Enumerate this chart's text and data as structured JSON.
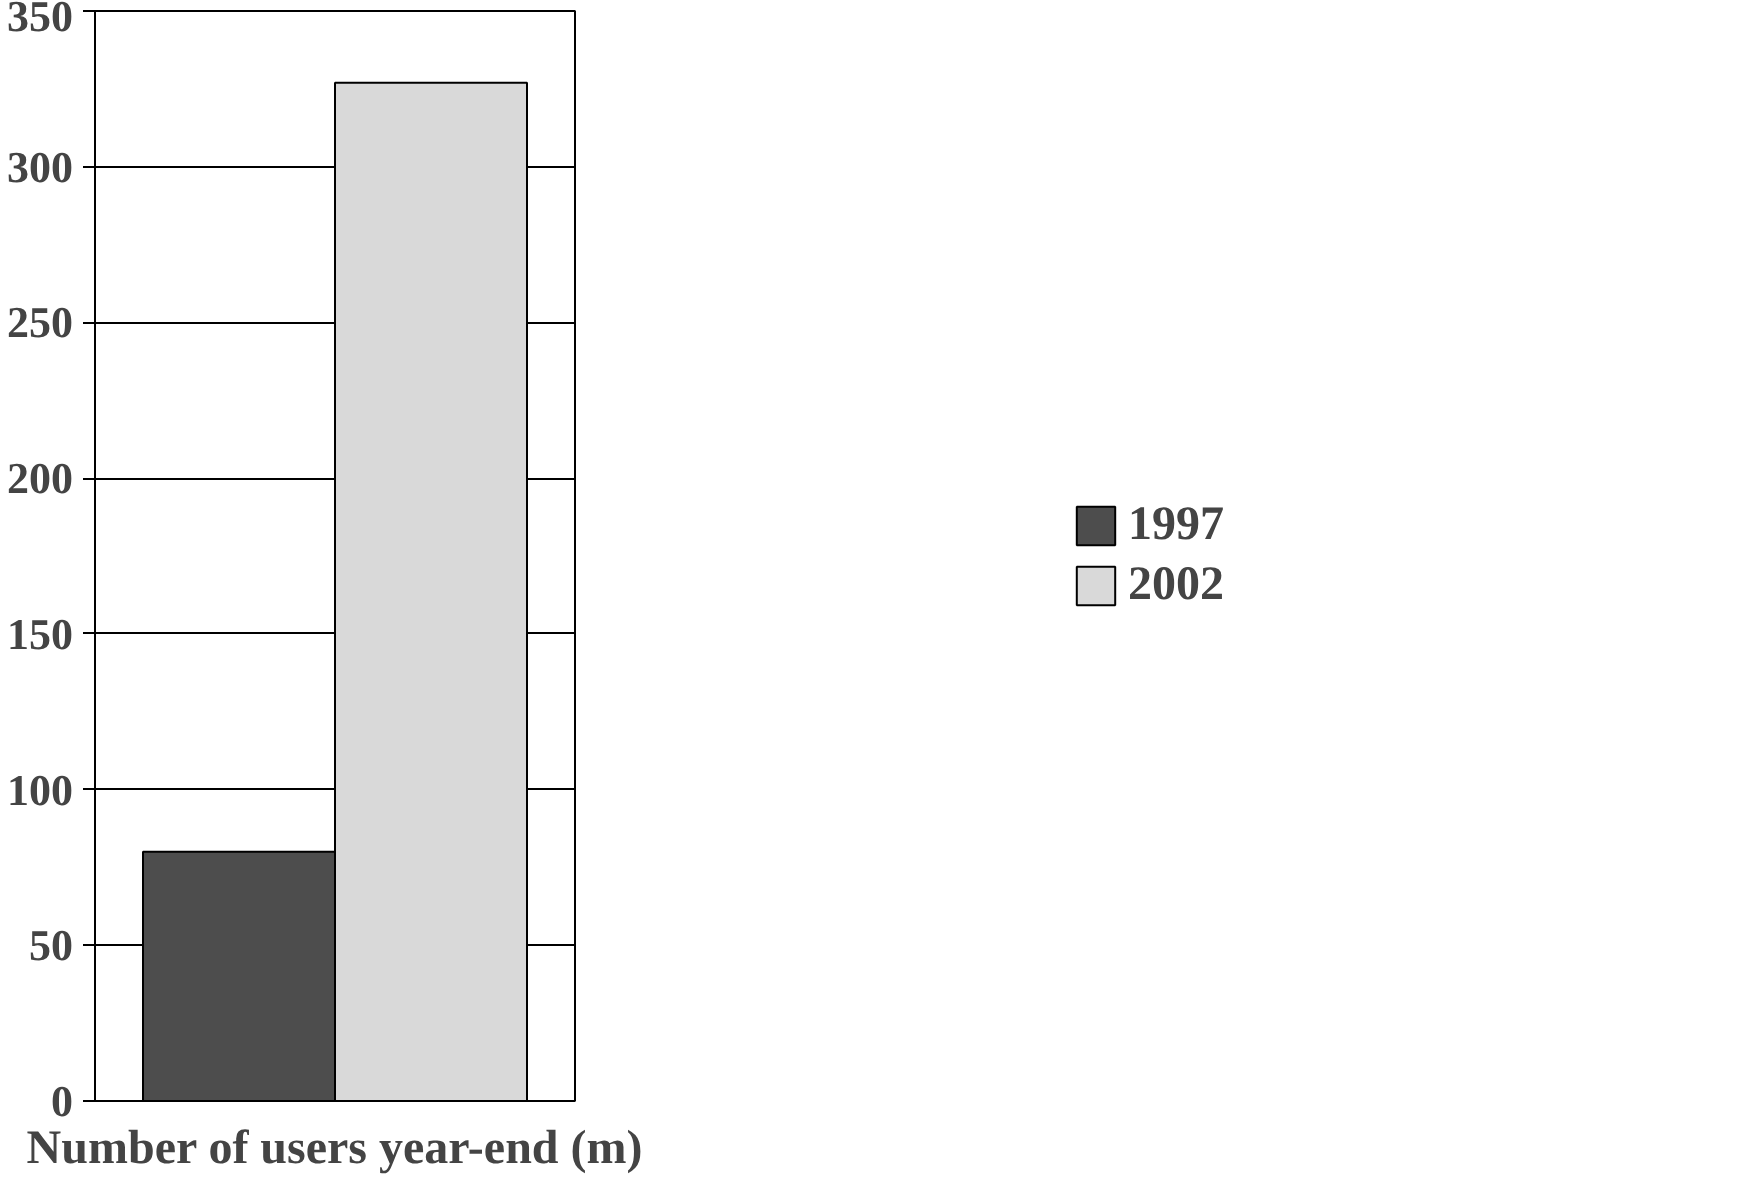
{
  "chart_data": {
    "type": "bar",
    "xlabel": "Number of users year-end (m)",
    "categories": [
      null
    ],
    "series": [
      {
        "name": "1997",
        "color": "#4d4d4d",
        "values": [
          80
        ]
      },
      {
        "name": "2002",
        "color": "#d9d9d9",
        "values": [
          327
        ]
      }
    ],
    "ylim": [
      0,
      350
    ],
    "yticks": [
      0,
      50,
      100,
      150,
      200,
      250,
      300,
      350
    ],
    "grid": "y",
    "legend": "right"
  }
}
